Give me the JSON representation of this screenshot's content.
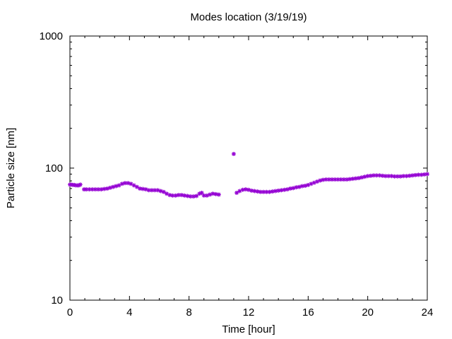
{
  "chart_data": {
    "type": "scatter",
    "title": "Modes location (3/19/19)",
    "xlabel": "Time [hour]",
    "ylabel": "Particle size [nm]",
    "xlim": [
      0,
      24
    ],
    "ylim": [
      10,
      1000
    ],
    "yscale": "log",
    "xticks": [
      "0",
      "4",
      "8",
      "12",
      "16",
      "20",
      "24"
    ],
    "yticks": [
      "10",
      "100",
      "1000"
    ],
    "grid": false,
    "marker_color": "#9400D3",
    "series": [
      {
        "name": "",
        "points": [
          [
            0.0,
            75
          ],
          [
            0.1,
            75
          ],
          [
            0.2,
            74.5
          ],
          [
            0.3,
            74.5
          ],
          [
            0.4,
            74
          ],
          [
            0.5,
            74
          ],
          [
            0.6,
            74
          ],
          [
            0.7,
            75
          ],
          [
            0.95,
            69
          ],
          [
            1.1,
            69
          ],
          [
            1.3,
            69
          ],
          [
            1.5,
            69
          ],
          [
            1.7,
            69
          ],
          [
            1.9,
            69
          ],
          [
            2.1,
            69
          ],
          [
            2.3,
            69.5
          ],
          [
            2.5,
            70
          ],
          [
            2.7,
            71
          ],
          [
            2.9,
            72
          ],
          [
            3.1,
            73
          ],
          [
            3.3,
            74
          ],
          [
            3.5,
            76
          ],
          [
            3.7,
            77
          ],
          [
            3.9,
            77
          ],
          [
            4.1,
            76
          ],
          [
            4.3,
            74
          ],
          [
            4.5,
            72
          ],
          [
            4.7,
            70
          ],
          [
            4.9,
            69.5
          ],
          [
            5.1,
            69
          ],
          [
            5.3,
            68
          ],
          [
            5.5,
            68
          ],
          [
            5.7,
            68
          ],
          [
            5.9,
            68
          ],
          [
            6.1,
            67
          ],
          [
            6.3,
            66
          ],
          [
            6.5,
            64
          ],
          [
            6.7,
            62.5
          ],
          [
            6.9,
            62
          ],
          [
            7.1,
            62
          ],
          [
            7.3,
            62.5
          ],
          [
            7.5,
            62.5
          ],
          [
            7.7,
            62
          ],
          [
            7.9,
            61.5
          ],
          [
            8.1,
            61
          ],
          [
            8.3,
            61
          ],
          [
            8.5,
            61.5
          ],
          [
            8.7,
            64
          ],
          [
            8.85,
            65
          ],
          [
            9.0,
            62
          ],
          [
            9.2,
            62
          ],
          [
            9.4,
            63
          ],
          [
            9.6,
            64
          ],
          [
            9.8,
            63.5
          ],
          [
            10.0,
            63
          ],
          [
            11.0,
            128
          ],
          [
            11.2,
            65
          ],
          [
            11.4,
            67
          ],
          [
            11.6,
            68.5
          ],
          [
            11.8,
            69
          ],
          [
            12.0,
            68.5
          ],
          [
            12.2,
            67.5
          ],
          [
            12.4,
            67
          ],
          [
            12.6,
            66.5
          ],
          [
            12.8,
            66
          ],
          [
            13.0,
            66
          ],
          [
            13.2,
            66
          ],
          [
            13.4,
            66
          ],
          [
            13.6,
            66.5
          ],
          [
            13.8,
            67
          ],
          [
            14.0,
            67.5
          ],
          [
            14.2,
            68
          ],
          [
            14.4,
            68.5
          ],
          [
            14.6,
            69
          ],
          [
            14.8,
            70
          ],
          [
            15.0,
            70.5
          ],
          [
            15.2,
            71.5
          ],
          [
            15.4,
            72
          ],
          [
            15.6,
            73
          ],
          [
            15.8,
            73.5
          ],
          [
            16.0,
            74.5
          ],
          [
            16.2,
            76
          ],
          [
            16.4,
            77.5
          ],
          [
            16.6,
            79
          ],
          [
            16.8,
            80.5
          ],
          [
            17.0,
            81.5
          ],
          [
            17.2,
            82
          ],
          [
            17.4,
            82
          ],
          [
            17.6,
            82
          ],
          [
            17.8,
            82
          ],
          [
            18.0,
            82
          ],
          [
            18.2,
            82
          ],
          [
            18.4,
            82
          ],
          [
            18.6,
            82
          ],
          [
            18.8,
            82.5
          ],
          [
            19.0,
            83
          ],
          [
            19.2,
            83.5
          ],
          [
            19.4,
            84
          ],
          [
            19.6,
            85
          ],
          [
            19.8,
            86
          ],
          [
            20.0,
            87
          ],
          [
            20.2,
            87.5
          ],
          [
            20.4,
            88
          ],
          [
            20.6,
            88
          ],
          [
            20.8,
            88
          ],
          [
            21.0,
            87.5
          ],
          [
            21.2,
            87
          ],
          [
            21.4,
            87
          ],
          [
            21.6,
            87
          ],
          [
            21.8,
            86.5
          ],
          [
            22.0,
            86.5
          ],
          [
            22.2,
            86.5
          ],
          [
            22.4,
            87
          ],
          [
            22.6,
            87
          ],
          [
            22.8,
            87.5
          ],
          [
            23.0,
            88
          ],
          [
            23.2,
            88.5
          ],
          [
            23.4,
            89
          ],
          [
            23.6,
            89
          ],
          [
            23.8,
            89.5
          ],
          [
            24.0,
            90
          ]
        ]
      }
    ]
  }
}
